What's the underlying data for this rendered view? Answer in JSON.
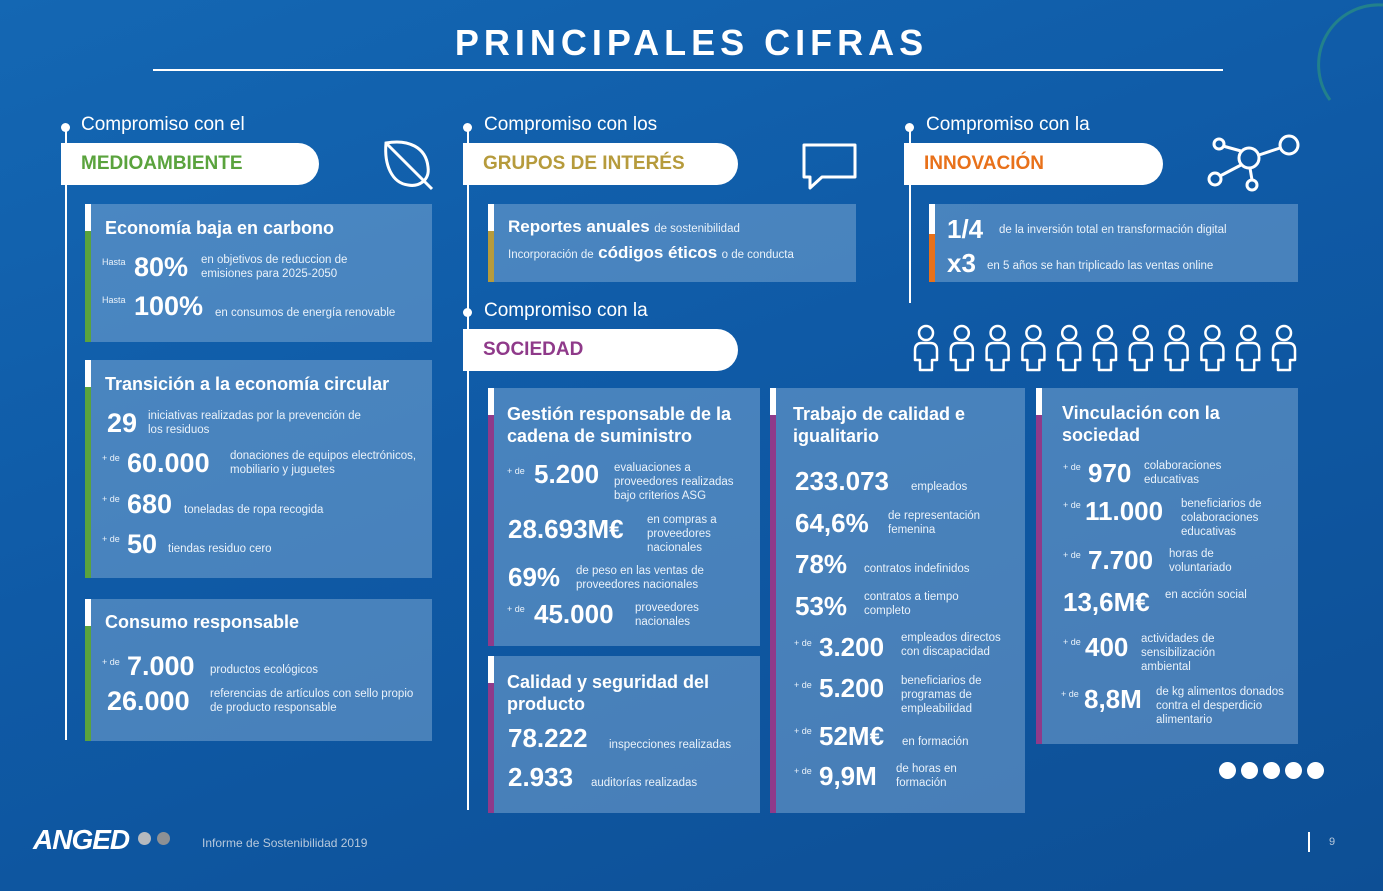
{
  "header": {
    "title": "PRINCIPALES CIFRAS"
  },
  "sections": {
    "medio": {
      "pre": "Compromiso con el",
      "label": "MEDIOAMBIENTE"
    },
    "grupos": {
      "pre": "Compromiso con los",
      "label": "GRUPOS DE INTERÉS"
    },
    "innov": {
      "pre": "Compromiso con la",
      "label": "INNOVACIÓN"
    },
    "soc": {
      "pre": "Compromiso con la",
      "label": "SOCIEDAD"
    }
  },
  "carbono": {
    "title": "Economía baja en carbono",
    "r1": {
      "pre": "Hasta",
      "big": "80%",
      "text": "en objetivos de reduccion de emisiones para 2025-2050"
    },
    "r2": {
      "pre": "Hasta",
      "big": "100%",
      "text": "en consumos de energía renovable"
    }
  },
  "circular": {
    "title": "Transición a la economía circular",
    "r1": {
      "pre": "",
      "big": "29",
      "text": "iniciativas realizadas por la prevención de los residuos"
    },
    "r2": {
      "pre": "+ de",
      "big": "60.000",
      "text": "donaciones de equipos electrónicos, mobiliario y juguetes"
    },
    "r3": {
      "pre": "+ de",
      "big": "680",
      "text": "toneladas de ropa recogida"
    },
    "r4": {
      "pre": "+ de",
      "big": "50",
      "text": "tiendas residuo cero"
    }
  },
  "consumo": {
    "title": "Consumo responsable",
    "r1": {
      "pre": "+ de",
      "big": "7.000",
      "text": "productos ecológicos"
    },
    "r2": {
      "pre": "",
      "big": "26.000",
      "text": "referencias de artículos con sello propio de producto responsable"
    }
  },
  "grupos_card": {
    "l1_bold": "Reportes anuales",
    "l1_rest": "de sostenibilidad",
    "l2_pre": "Incorporación de",
    "l2_bold": "códigos éticos",
    "l2_rest": "o de conducta"
  },
  "innov_card": {
    "r1": {
      "big": "1/4",
      "text": "de la inversión total en transformación digital"
    },
    "r2": {
      "big": "x3",
      "text": "en 5 años se han triplicado las ventas online"
    }
  },
  "gestion": {
    "title": "Gestión responsable de la cadena de suministro",
    "r1": {
      "pre": "+ de",
      "big": "5.200",
      "text": "evaluaciones a proveedores realizadas bajo criterios ASG"
    },
    "r2": {
      "big": "28.693M€",
      "text": "en compras a proveedores nacionales"
    },
    "r3": {
      "big": "69%",
      "text": "de peso en las ventas de proveedores nacionales"
    },
    "r4": {
      "pre": "+ de",
      "big": "45.000",
      "text": "proveedores nacionales"
    }
  },
  "calidad": {
    "title": "Calidad y seguridad del producto",
    "r1": {
      "big": "78.222",
      "text": "inspecciones realizadas"
    },
    "r2": {
      "big": "2.933",
      "text": "auditorías realizadas"
    }
  },
  "trabajo": {
    "title": "Trabajo de calidad e igualitario",
    "r1": {
      "big": "233.073",
      "text": "empleados"
    },
    "r2": {
      "big": "64,6%",
      "text": "de representación femenina"
    },
    "r3": {
      "big": "78%",
      "text": "contratos indefinidos"
    },
    "r4": {
      "big": "53%",
      "text": "contratos a tiempo completo"
    },
    "r5": {
      "pre": "+ de",
      "big": "3.200",
      "text": "empleados directos con discapacidad"
    },
    "r6": {
      "pre": "+ de",
      "big": "5.200",
      "text": "beneficiarios de programas de empleabilidad"
    },
    "r7": {
      "pre": "+ de",
      "big": "52M€",
      "text": "en formación"
    },
    "r8": {
      "pre": "+ de",
      "big": "9,9M",
      "text": "de horas en formación"
    }
  },
  "vinculo": {
    "title": "Vinculación con la sociedad",
    "r1": {
      "pre": "+ de",
      "big": "970",
      "text": "colaboraciones educativas"
    },
    "r2": {
      "pre": "+ de",
      "big": "11.000",
      "text": "beneficiarios de colaboraciones educativas"
    },
    "r3": {
      "pre": "+ de",
      "big": "7.700",
      "text": "horas de voluntariado"
    },
    "r4": {
      "big": "13,6M€",
      "text": "en acción social"
    },
    "r5": {
      "pre": "+ de",
      "big": "400",
      "text": "actividades de sensibilización ambiental"
    },
    "r6": {
      "pre": "+ de",
      "big": "8,8M",
      "text": "de kg alimentos donados contra el desperdicio alimentario"
    }
  },
  "footer": {
    "logo": "ANGED",
    "report": "Informe de Sostenibilidad 2019",
    "page": "9"
  },
  "colors": {
    "green": "#5aa33d",
    "gold": "#b69b3c",
    "orange": "#e8711a",
    "purple": "#8f3a8a"
  },
  "icons": [
    "leaf-icon",
    "speech-bubble-icon",
    "network-icon",
    "people-icon"
  ]
}
